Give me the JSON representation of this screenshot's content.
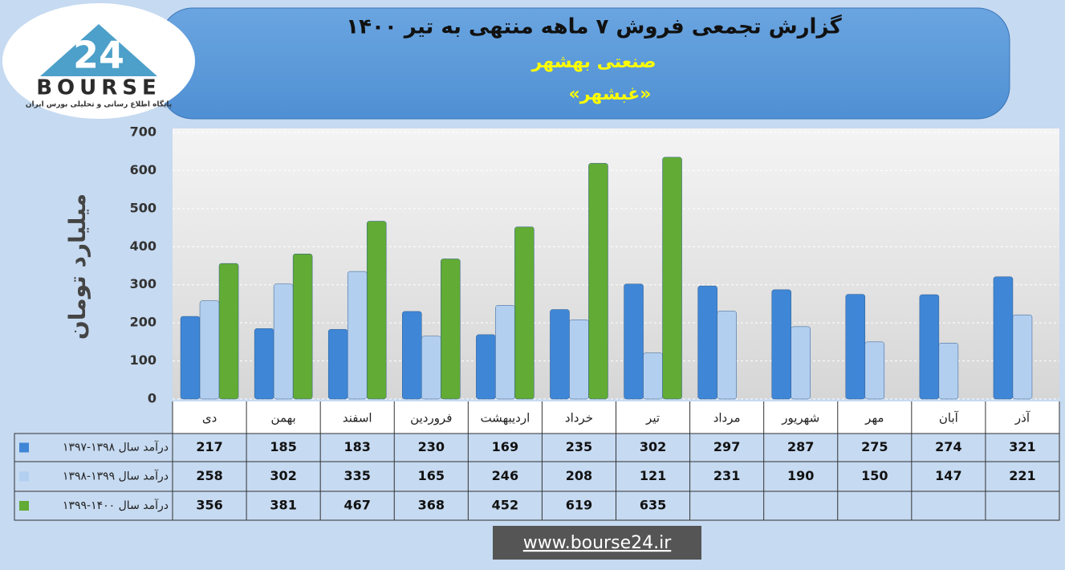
{
  "header": {
    "title": "گزارش تجمعی فروش ۷ ماهه منتهی به تیر ۱۴۰۰",
    "subtitle": "صنعتی بهشهر",
    "ticker": "«غبشهر»"
  },
  "logo": {
    "number": "24",
    "name": "BOURSE",
    "tagline": "پایگاه اطلاع رسانی و تحلیلی بورس ایران"
  },
  "footer": "www.bourse24.ir",
  "chart_data": {
    "type": "bar",
    "y_label": "میلیارد تومان",
    "categories": [
      "دی",
      "بهمن",
      "اسفند",
      "فروردین",
      "اردیبهشت",
      "خرداد",
      "تیر",
      "مرداد",
      "شهریور",
      "مهر",
      "آبان",
      "آذر"
    ],
    "series": [
      {
        "name": "درآمد سال ۱۳۹۸-۱۳۹۷",
        "color": "#3f86d6",
        "values": [
          217,
          185,
          183,
          230,
          169,
          235,
          302,
          297,
          287,
          275,
          274,
          321
        ]
      },
      {
        "name": "درآمد سال ۱۳۹۹-۱۳۹۸",
        "color": "#b3cff0",
        "values": [
          258,
          302,
          335,
          165,
          246,
          208,
          121,
          231,
          190,
          150,
          147,
          221
        ]
      },
      {
        "name": "درآمد سال ۱۴۰۰-۱۳۹۹",
        "color": "#62ab35",
        "values": [
          356,
          381,
          467,
          368,
          452,
          619,
          635,
          null,
          null,
          null,
          null,
          null
        ]
      }
    ],
    "ylim": [
      0,
      700
    ],
    "yticks": [
      0,
      100,
      200,
      300,
      400,
      500,
      600,
      700
    ],
    "grid": true
  }
}
